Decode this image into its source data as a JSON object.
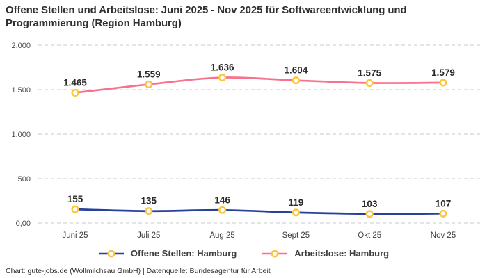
{
  "title": "Offene Stellen und Arbeitslose: Juni 2025 - Nov 2025 für Softwareentwicklung und Programmierung (Region Hamburg)",
  "footer": "Chart: gute-jobs.de (Wollmilchsau GmbH) | Datenquelle: Bundesagentur für Arbeit",
  "colors": {
    "open_positions_line": "#27409B",
    "unemployed_line": "#F8728B",
    "marker_ring": "#FDC43F",
    "marker_fill": "#FFFFFF",
    "gridline": "#C8C8C8",
    "title_text": "#303030"
  },
  "chart_data": {
    "type": "line",
    "title": "Offene Stellen und Arbeitslose: Juni 2025 - Nov 2025 für Softwareentwicklung und Programmierung (Region Hamburg)",
    "categories": [
      "Juni 25",
      "Juli 25",
      "Aug 25",
      "Sept 25",
      "Okt 25",
      "Nov 25"
    ],
    "series": [
      {
        "name": "Offene Stellen: Hamburg",
        "color": "#27409B",
        "values": [
          155,
          135,
          146,
          119,
          103,
          107
        ],
        "labels": [
          "155",
          "135",
          "146",
          "119",
          "103",
          "107"
        ]
      },
      {
        "name": "Arbeitslose: Hamburg",
        "color": "#F8728B",
        "values": [
          1465,
          1559,
          1636,
          1604,
          1575,
          1579
        ],
        "labels": [
          "1.465",
          "1.559",
          "1.636",
          "1.604",
          "1.575",
          "1.579"
        ]
      }
    ],
    "xlabel": "",
    "ylabel": "",
    "ylim": [
      0,
      2000
    ],
    "yticks": [
      {
        "value": 0,
        "label": "0,00"
      },
      {
        "value": 500,
        "label": "500"
      },
      {
        "value": 1000,
        "label": "1.000"
      },
      {
        "value": 1500,
        "label": "1.500"
      },
      {
        "value": 2000,
        "label": "2.000"
      }
    ],
    "grid": "horizontal-dashed",
    "legend_position": "bottom",
    "marker_style": "ring",
    "line_style": "smooth"
  }
}
